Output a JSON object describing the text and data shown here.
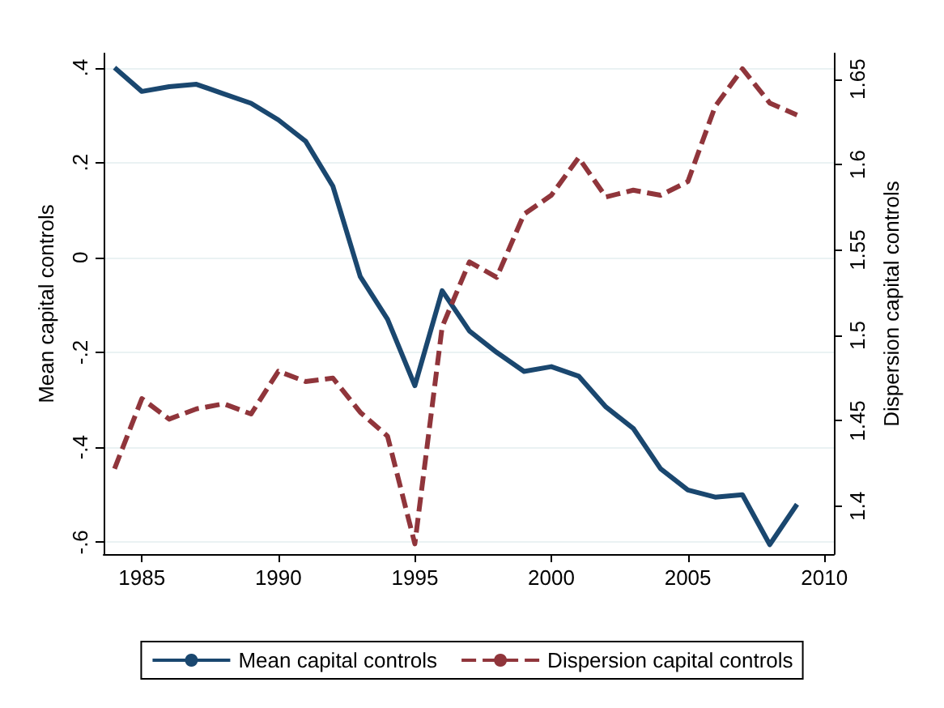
{
  "chart_data": {
    "type": "line",
    "ylabel": "Mean capital controls",
    "y2label": "Dispersion capital controls",
    "x": [
      1984,
      1985,
      1986,
      1987,
      1988,
      1989,
      1990,
      1991,
      1992,
      1993,
      1994,
      1995,
      1996,
      1997,
      1998,
      1999,
      2000,
      2001,
      2002,
      2003,
      2004,
      2005,
      2006,
      2007,
      2008,
      2009
    ],
    "series": [
      {
        "name": "Mean capital controls",
        "color": "#1a476f",
        "line_style": "solid",
        "values": [
          0.4,
          0.35,
          0.36,
          0.365,
          0.345,
          0.325,
          0.29,
          0.245,
          0.15,
          -0.04,
          -0.13,
          -0.27,
          -0.07,
          -0.155,
          -0.2,
          -0.24,
          -0.23,
          -0.25,
          -0.315,
          -0.36,
          -0.445,
          -0.49,
          -0.505,
          -0.5,
          -0.605,
          -0.52
        ]
      },
      {
        "name": "Dispersion capital controls",
        "color": "#90353b",
        "line_style": "dashed",
        "axis": "y2",
        "values": [
          1.422,
          1.463,
          1.451,
          1.457,
          1.46,
          1.454,
          1.479,
          1.473,
          1.475,
          1.455,
          1.441,
          1.378,
          1.505,
          1.543,
          1.534,
          1.571,
          1.582,
          1.604,
          1.581,
          1.585,
          1.582,
          1.59,
          1.634,
          1.656,
          1.636,
          1.629
        ]
      }
    ],
    "xlim": [
      1983.6,
      2010.35
    ],
    "xticks": [
      1985,
      1990,
      1995,
      2000,
      2005,
      2010
    ],
    "ylim": [
      -0.625,
      0.43
    ],
    "yticks": [
      {
        "value": -0.6,
        "label": "-.6"
      },
      {
        "value": -0.4,
        "label": "-.4"
      },
      {
        "value": -0.2,
        "label": "-.2"
      },
      {
        "value": 0,
        "label": "0"
      },
      {
        "value": 0.2,
        "label": ".2"
      },
      {
        "value": 0.4,
        "label": ".4"
      }
    ],
    "y2lim": [
      1.372,
      1.665
    ],
    "y2ticks": [
      1.4,
      1.45,
      1.5,
      1.55,
      1.6,
      1.65
    ],
    "grid": "y",
    "legend": "bottom",
    "marker": "none"
  }
}
